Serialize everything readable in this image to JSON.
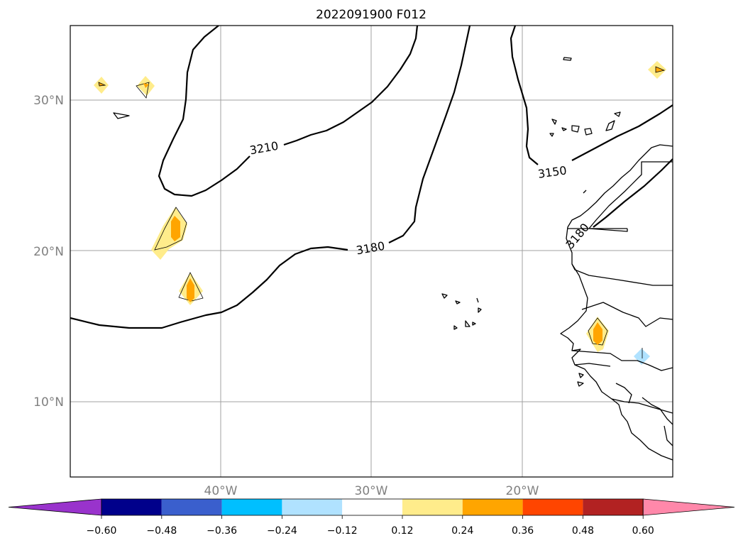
{
  "title": "2022091900 F012",
  "map": {
    "lat_labels": [
      "30°N",
      "20°N",
      "10°N"
    ],
    "lon_labels": [
      "40°W",
      "30°W",
      "20°W"
    ],
    "extent": {
      "lon": [
        -50,
        -10
      ],
      "lat": [
        5,
        35
      ]
    },
    "grid": true,
    "contour_labels": [
      "3210",
      "3180",
      "3150",
      "3180"
    ]
  },
  "colorbar": {
    "ticks": [
      "−0.60",
      "−0.48",
      "−0.36",
      "−0.24",
      "−0.12",
      "0.12",
      "0.24",
      "0.36",
      "0.48",
      "0.60"
    ],
    "colors": [
      "#9933cc",
      "#00008b",
      "#3a5fcd",
      "#00bfff",
      "#b0e2ff",
      "#ffffff",
      "#ffec8b",
      "#ffa500",
      "#ff4500",
      "#b22222",
      "#ff88aa"
    ],
    "orientation": "horizontal",
    "extend": "both"
  }
}
